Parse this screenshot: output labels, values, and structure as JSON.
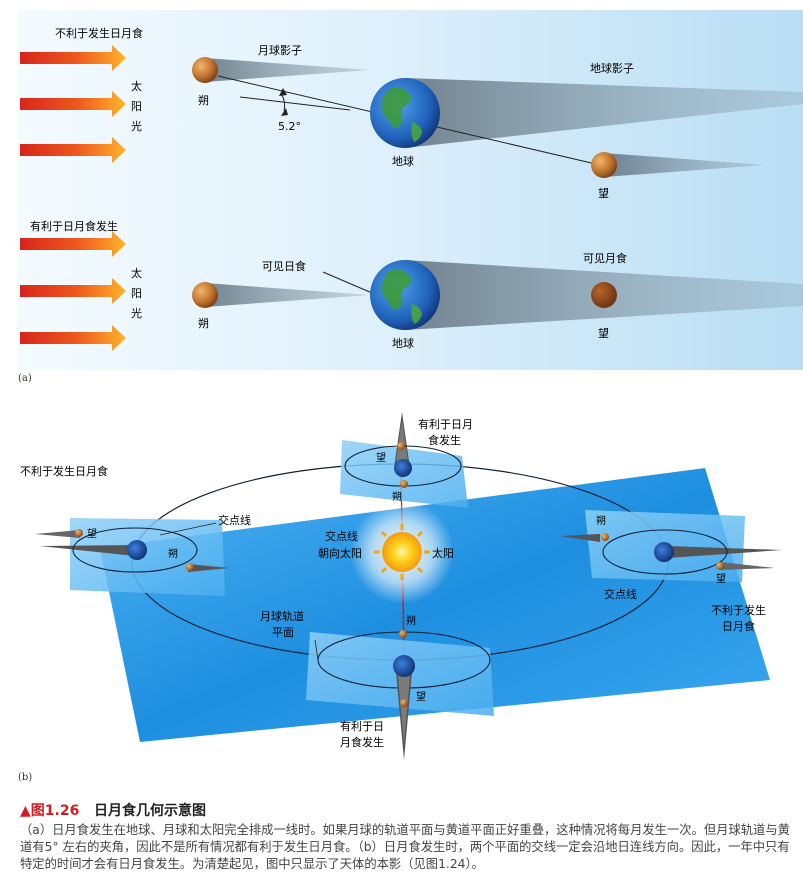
{
  "panel_a": {
    "label": "(a)",
    "top": {
      "condition": "不利于发生日月食",
      "sunlight": [
        "太",
        "阳",
        "光"
      ],
      "new_moon": "朔",
      "moon_shadow": "月球影子",
      "angle": "5.2°",
      "earth": "地球",
      "earth_shadow": "地球影子",
      "full_moon": "望"
    },
    "bottom": {
      "condition": "有利于日月食发生",
      "sunlight": [
        "太",
        "阳",
        "光"
      ],
      "new_moon": "朔",
      "solar_eclipse": "可见日食",
      "earth": "地球",
      "lunar_eclipse": "可见月食",
      "full_moon": "望"
    }
  },
  "panel_b": {
    "label": "(b)",
    "top_favorable": [
      "有利于日月",
      "食发生"
    ],
    "left_unfavorable": "不利于发生日月食",
    "right_unfavorable": [
      "不利于发生",
      "日月食"
    ],
    "bottom_favorable": [
      "有利于日",
      "月食发生"
    ],
    "node_line": "交点线",
    "node_line_to_sun": [
      "交点线",
      "朝向太阳"
    ],
    "sun": "太阳",
    "orbit_plane": [
      "月球轨道",
      "平面"
    ],
    "full_moon": "望",
    "new_moon": "朔"
  },
  "caption": {
    "marker": "▲",
    "figure_num": "图1.26",
    "title": "日月食几何示意图",
    "text": "（a）日月食发生在地球、月球和太阳完全排成一线时。如果月球的轨道平面与黄道平面正好重叠，这种情况将每月发生一次。但月球轨道与黄道有5° 左右的夹角，因此不是所有情况都有利于发生日月食。（b）日月食发生时，两个平面的交线一定会沿地日连线方向。因此，一年中只有特定的时间才会有日月食发生。为清楚起见，图中只显示了天体的本影（见图1.24）。"
  },
  "colors": {
    "sky_light": "#eaf6fd",
    "sky_mid": "#bfe2f6",
    "plane_blue": "#1e8fe0",
    "ocean_blue": "#2d6fc9",
    "land_green": "#3f9a3a",
    "moon_brown": "#b5682a",
    "sun_yellow": "#ffd21a",
    "arrow_red": "#e2231a",
    "arrow_orange": "#f7a21b",
    "caption_red": "#d71920"
  }
}
